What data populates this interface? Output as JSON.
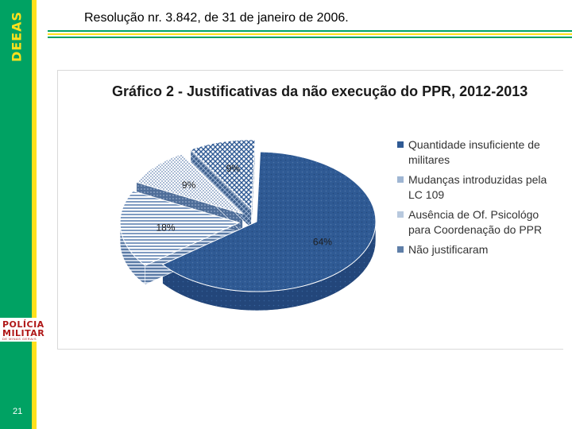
{
  "sidebar": {
    "brand": "DEEAS",
    "logo_line1": "POLÍCIA",
    "logo_line2": "MILITAR",
    "logo_line3": "DE MINAS GERAIS",
    "page_number": "21"
  },
  "header": {
    "title": "Resolução nr. 3.842, de 31 de janeiro de 2006."
  },
  "colors": {
    "green": "#00a263",
    "yellow": "#ffe11c",
    "series1": "#2f5a94",
    "series2": "#9fb6d3",
    "series3": "#b8c9de",
    "series4": "#5f7fa8"
  },
  "chart_data": {
    "type": "pie",
    "title": "Gráfico 2 - Justificativas da não execução do PPR, 2012-2013",
    "legend_position": "right",
    "categories": [
      "Quantidade insuficiente de militares",
      "Mudanças introduzidas pela LC 109",
      "Ausência de Of. Psicológo para Coordenação do PPR",
      "Não justificaram"
    ],
    "values": [
      64,
      18,
      9,
      9
    ],
    "data_labels": [
      "64%",
      "18%",
      "9%",
      "9%"
    ]
  }
}
